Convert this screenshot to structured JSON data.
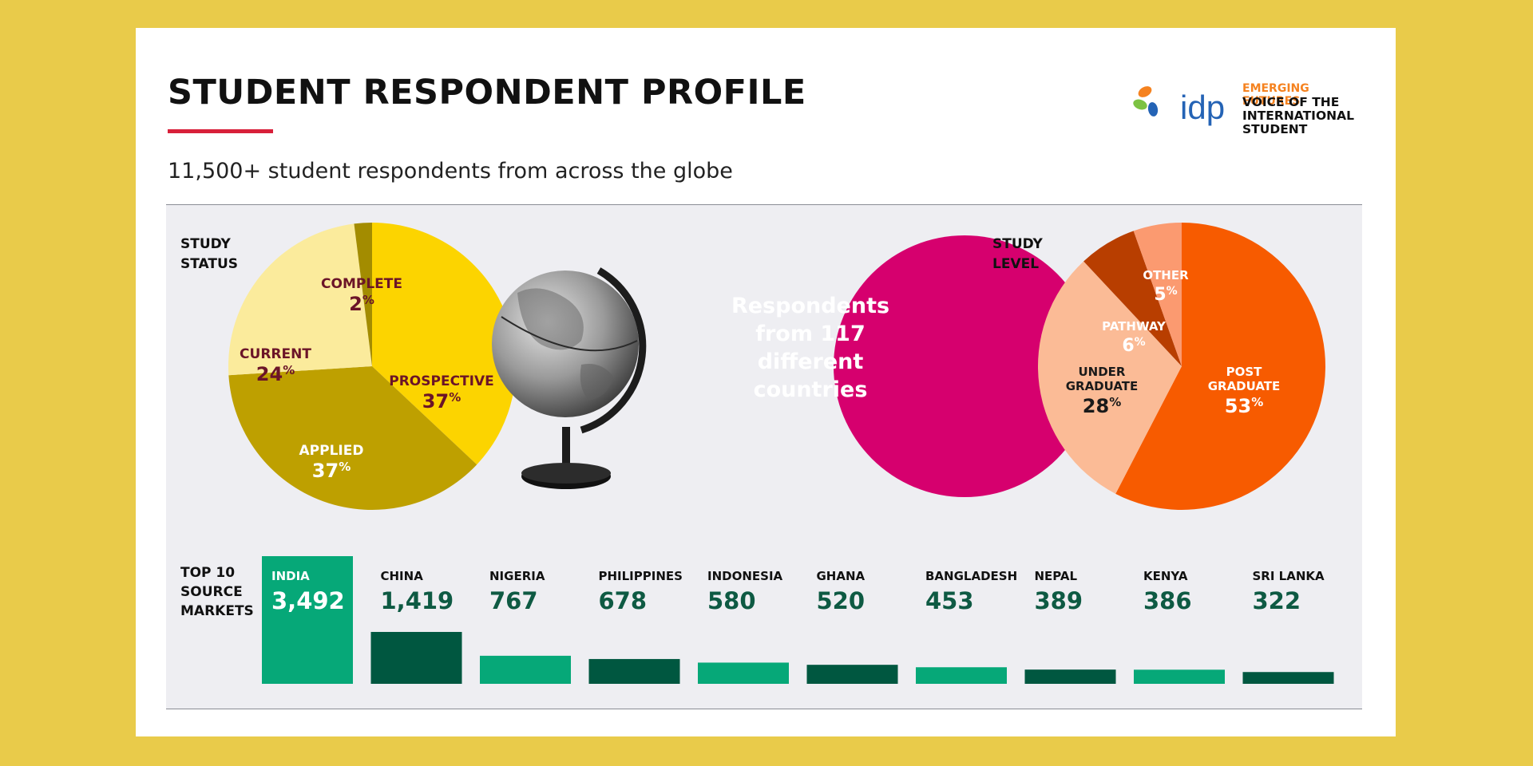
{
  "header": {
    "title": "STUDENT RESPONDENT PROFILE",
    "subtitle": "11,500+ student respondents from across the globe"
  },
  "logo": {
    "wordmark": "idp",
    "tagline_top": "EMERGING FUTURES",
    "tagline_lines": [
      "VOICE OF THE",
      "INTERNATIONAL",
      "STUDENT"
    ]
  },
  "center": {
    "lines": [
      "Respondents",
      "from 117",
      "different",
      "countries"
    ]
  },
  "colors": {
    "accent_red": "#D8203A",
    "magenta": "#D6006E",
    "green_light": "#06A878",
    "green_dark": "#005740"
  },
  "chart_data": [
    {
      "type": "pie",
      "title_lines": [
        "STUDY",
        "STATUS"
      ],
      "slices": [
        {
          "label": "PROSPECTIVE",
          "value": 37,
          "color": "#FCD400",
          "text_color": "#6B1428"
        },
        {
          "label": "APPLIED",
          "value": 37,
          "color": "#BEA000",
          "text_color": "#ffffff"
        },
        {
          "label": "CURRENT",
          "value": 24,
          "color": "#FBEB9C",
          "text_color": "#6B1428"
        },
        {
          "label": "COMPLETE",
          "value": 2,
          "color": "#A38C00",
          "text_color": "#6B1428"
        }
      ]
    },
    {
      "type": "pie",
      "title_lines": [
        "STUDY",
        "LEVEL"
      ],
      "slices": [
        {
          "label": "POST GRADUATE",
          "value": 53,
          "color": "#F75B00",
          "text_color": "#ffffff"
        },
        {
          "label": "UNDER GRADUATE",
          "value": 28,
          "color": "#FBBB96",
          "text_color": "#1A1A1A"
        },
        {
          "label": "PATHWAY",
          "value": 6,
          "color": "#B83E00",
          "text_color": "#ffffff"
        },
        {
          "label": "OTHER",
          "value": 5,
          "color": "#FB9A70",
          "text_color": "#ffffff"
        }
      ]
    },
    {
      "type": "bar",
      "title_lines": [
        "TOP 10",
        "SOURCE",
        "MARKETS"
      ],
      "categories": [
        "INDIA",
        "CHINA",
        "NIGERIA",
        "PHILIPPINES",
        "INDONESIA",
        "GHANA",
        "BANGLADESH",
        "NEPAL",
        "KENYA",
        "SRI LANKA"
      ],
      "values": [
        3492,
        1419,
        767,
        678,
        580,
        520,
        453,
        389,
        386,
        322
      ],
      "value_labels": [
        "3,492",
        "1,419",
        "767",
        "678",
        "580",
        "520",
        "453",
        "389",
        "386",
        "322"
      ]
    }
  ]
}
